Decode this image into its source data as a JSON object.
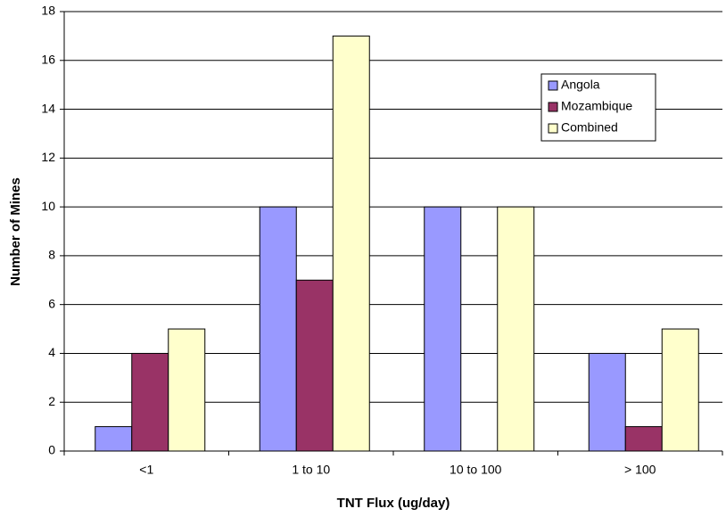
{
  "chart_data": {
    "type": "bar",
    "x_label": "TNT Flux (ug/day)",
    "y_label": "Number of Mines",
    "categories": [
      "<1",
      "1 to 10",
      "10 to 100",
      "> 100"
    ],
    "series": [
      {
        "name": "Angola",
        "color": "#9999ff",
        "values": [
          1,
          10,
          10,
          4
        ]
      },
      {
        "name": "Mozambique",
        "color": "#993366",
        "values": [
          4,
          7,
          0,
          1
        ]
      },
      {
        "name": "Combined",
        "color": "#ffffcc",
        "values": [
          5,
          17,
          10,
          5
        ]
      }
    ],
    "ylim": [
      0,
      18
    ],
    "yticks": [
      0,
      2,
      4,
      6,
      8,
      10,
      12,
      14,
      16,
      18
    ],
    "grid": true,
    "legend": "upper right"
  }
}
